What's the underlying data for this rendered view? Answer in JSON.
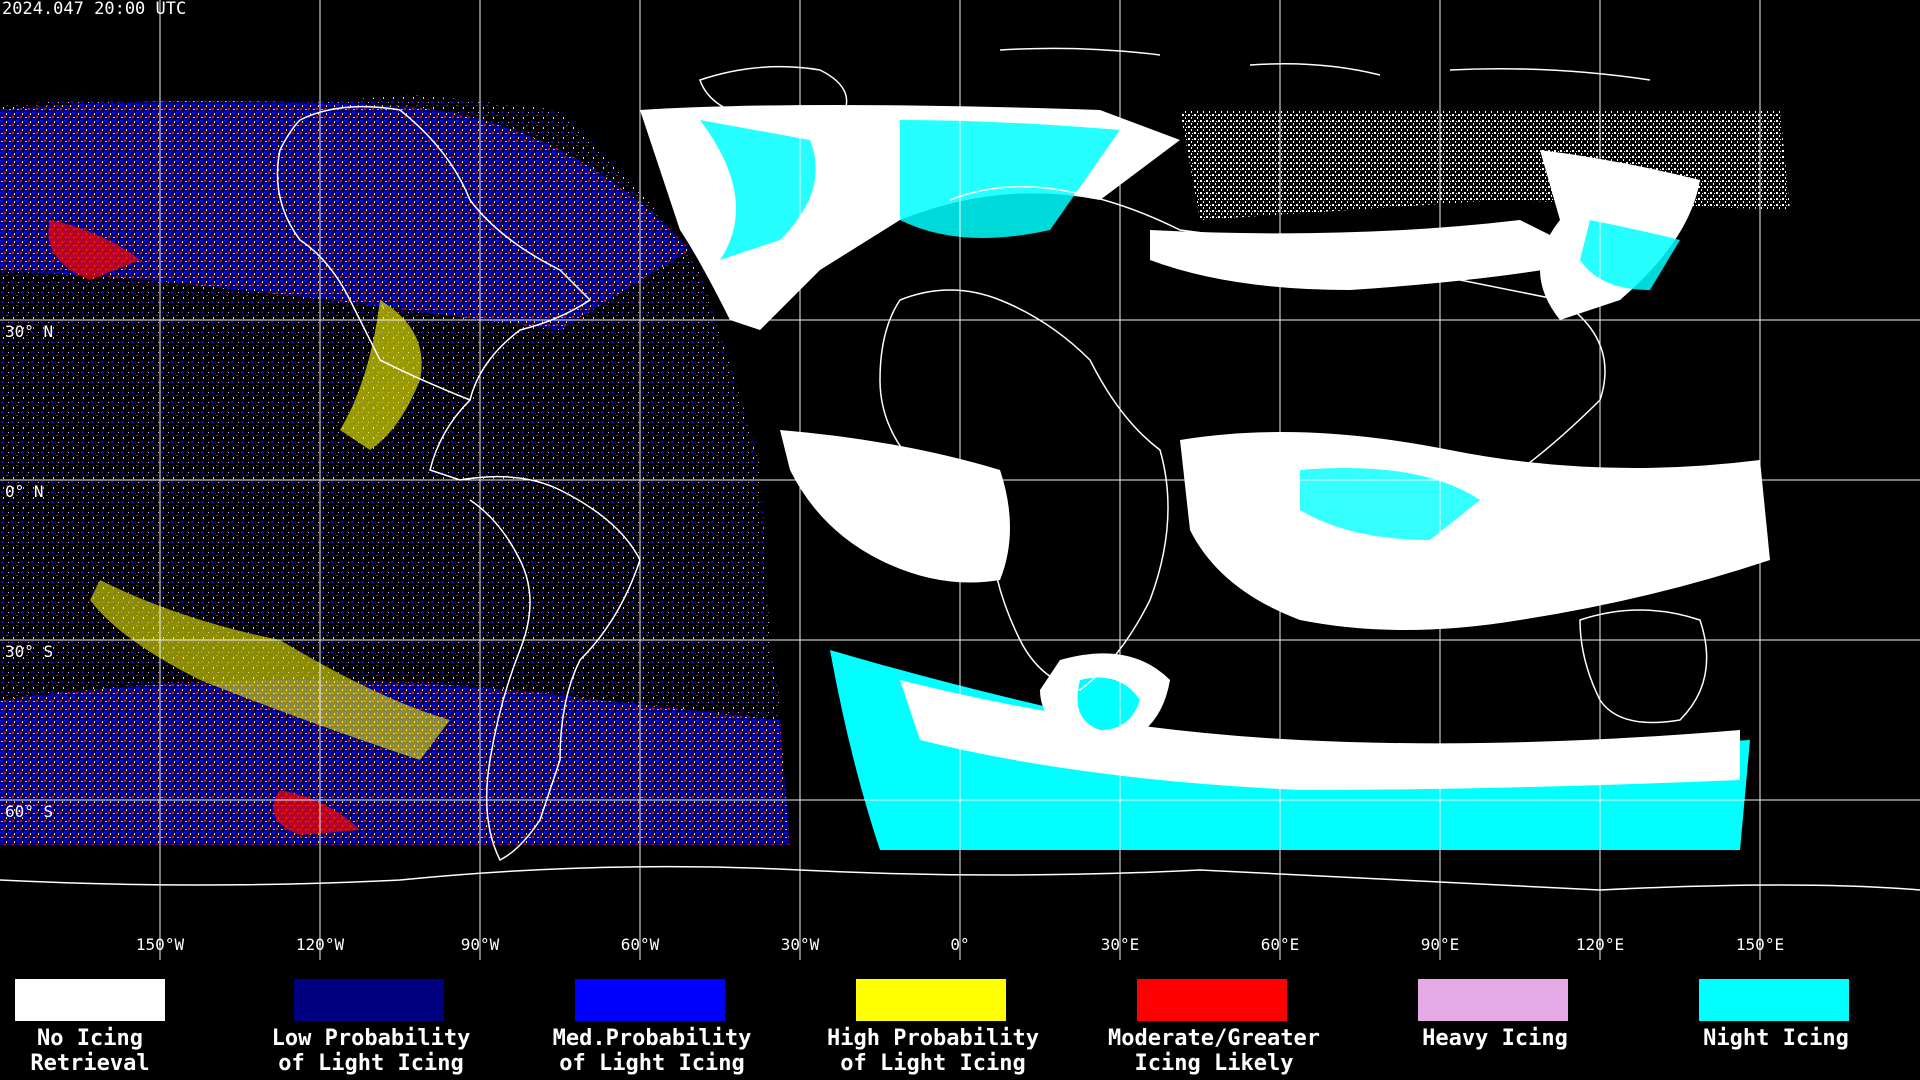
{
  "title": "2024.047 20:00 UTC",
  "colors": {
    "no_icing_retrieval": "#ffffff",
    "low_probability": "#000080",
    "med_probability": "#0000ff",
    "high_probability": "#ffff00",
    "moderate_greater": "#ff0000",
    "heavy_icing": "#e6aae6",
    "night_icing": "#00ffff",
    "coastline": "#ffffff",
    "grid": "#ffffff",
    "background": "#000000"
  },
  "latitude_labels": [
    "30° N",
    "0° N",
    "30° S",
    "60° S"
  ],
  "longitude_labels": [
    "150°W",
    "120°W",
    "90°W",
    "60°W",
    "30°W",
    "0°",
    "30°E",
    "60°E",
    "90°E",
    "120°E",
    "150°E"
  ],
  "legend": [
    {
      "color_key": "no_icing_retrieval",
      "line1": "No Icing",
      "line2": "Retrieval"
    },
    {
      "color_key": "low_probability",
      "line1": "Low Probability",
      "line2": "of Light Icing"
    },
    {
      "color_key": "med_probability",
      "line1": "Med.Probability",
      "line2": "of Light Icing"
    },
    {
      "color_key": "high_probability",
      "line1": "High Probability",
      "line2": "of Light Icing"
    },
    {
      "color_key": "moderate_greater",
      "line1": "Moderate/Greater",
      "line2": "Icing Likely"
    },
    {
      "color_key": "heavy_icing",
      "line1": "Heavy Icing",
      "line2": ""
    },
    {
      "color_key": "night_icing",
      "line1": "Night Icing",
      "line2": ""
    }
  ]
}
